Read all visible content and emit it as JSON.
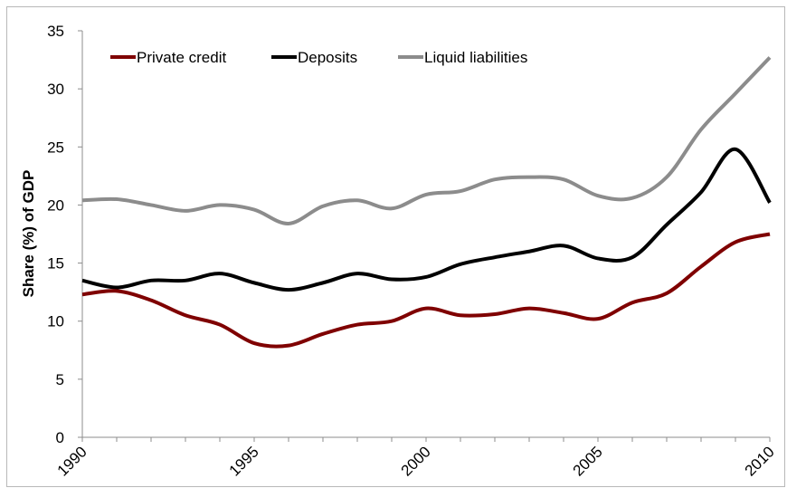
{
  "chart_data": {
    "type": "line",
    "title": "",
    "xlabel": "",
    "ylabel": "Share (%) of GDP",
    "x": [
      1990,
      1991,
      1992,
      1993,
      1994,
      1995,
      1996,
      1997,
      1998,
      1999,
      2000,
      2001,
      2002,
      2003,
      2004,
      2005,
      2006,
      2007,
      2008,
      2009,
      2010
    ],
    "x_ticks": [
      "1990",
      "1995",
      "2000",
      "2005",
      "2010"
    ],
    "y_ticks": [
      "0",
      "5",
      "10",
      "15",
      "20",
      "25",
      "30",
      "35"
    ],
    "ylim": [
      0,
      35
    ],
    "xlim": [
      1990,
      2010
    ],
    "grid": false,
    "legend_position": "top",
    "series": [
      {
        "name": "Private credit",
        "color": "#7f0000",
        "values": [
          12.3,
          12.6,
          11.8,
          10.5,
          9.7,
          8.1,
          7.9,
          8.9,
          9.7,
          10.0,
          11.1,
          10.5,
          10.6,
          11.1,
          10.7,
          10.2,
          11.6,
          12.4,
          14.7,
          16.8,
          17.5
        ]
      },
      {
        "name": "Deposits",
        "color": "#000000",
        "values": [
          13.5,
          12.9,
          13.5,
          13.5,
          14.1,
          13.3,
          12.7,
          13.3,
          14.1,
          13.6,
          13.8,
          14.9,
          15.5,
          16.0,
          16.5,
          15.4,
          15.5,
          18.3,
          21.1,
          24.8,
          20.2
        ]
      },
      {
        "name": "Liquid liabilities",
        "color": "#8c8c8c",
        "values": [
          20.4,
          20.5,
          20.0,
          19.5,
          20.0,
          19.6,
          18.4,
          19.9,
          20.4,
          19.7,
          20.9,
          21.2,
          22.2,
          22.4,
          22.2,
          20.8,
          20.6,
          22.4,
          26.5,
          29.6,
          32.7
        ]
      }
    ]
  }
}
